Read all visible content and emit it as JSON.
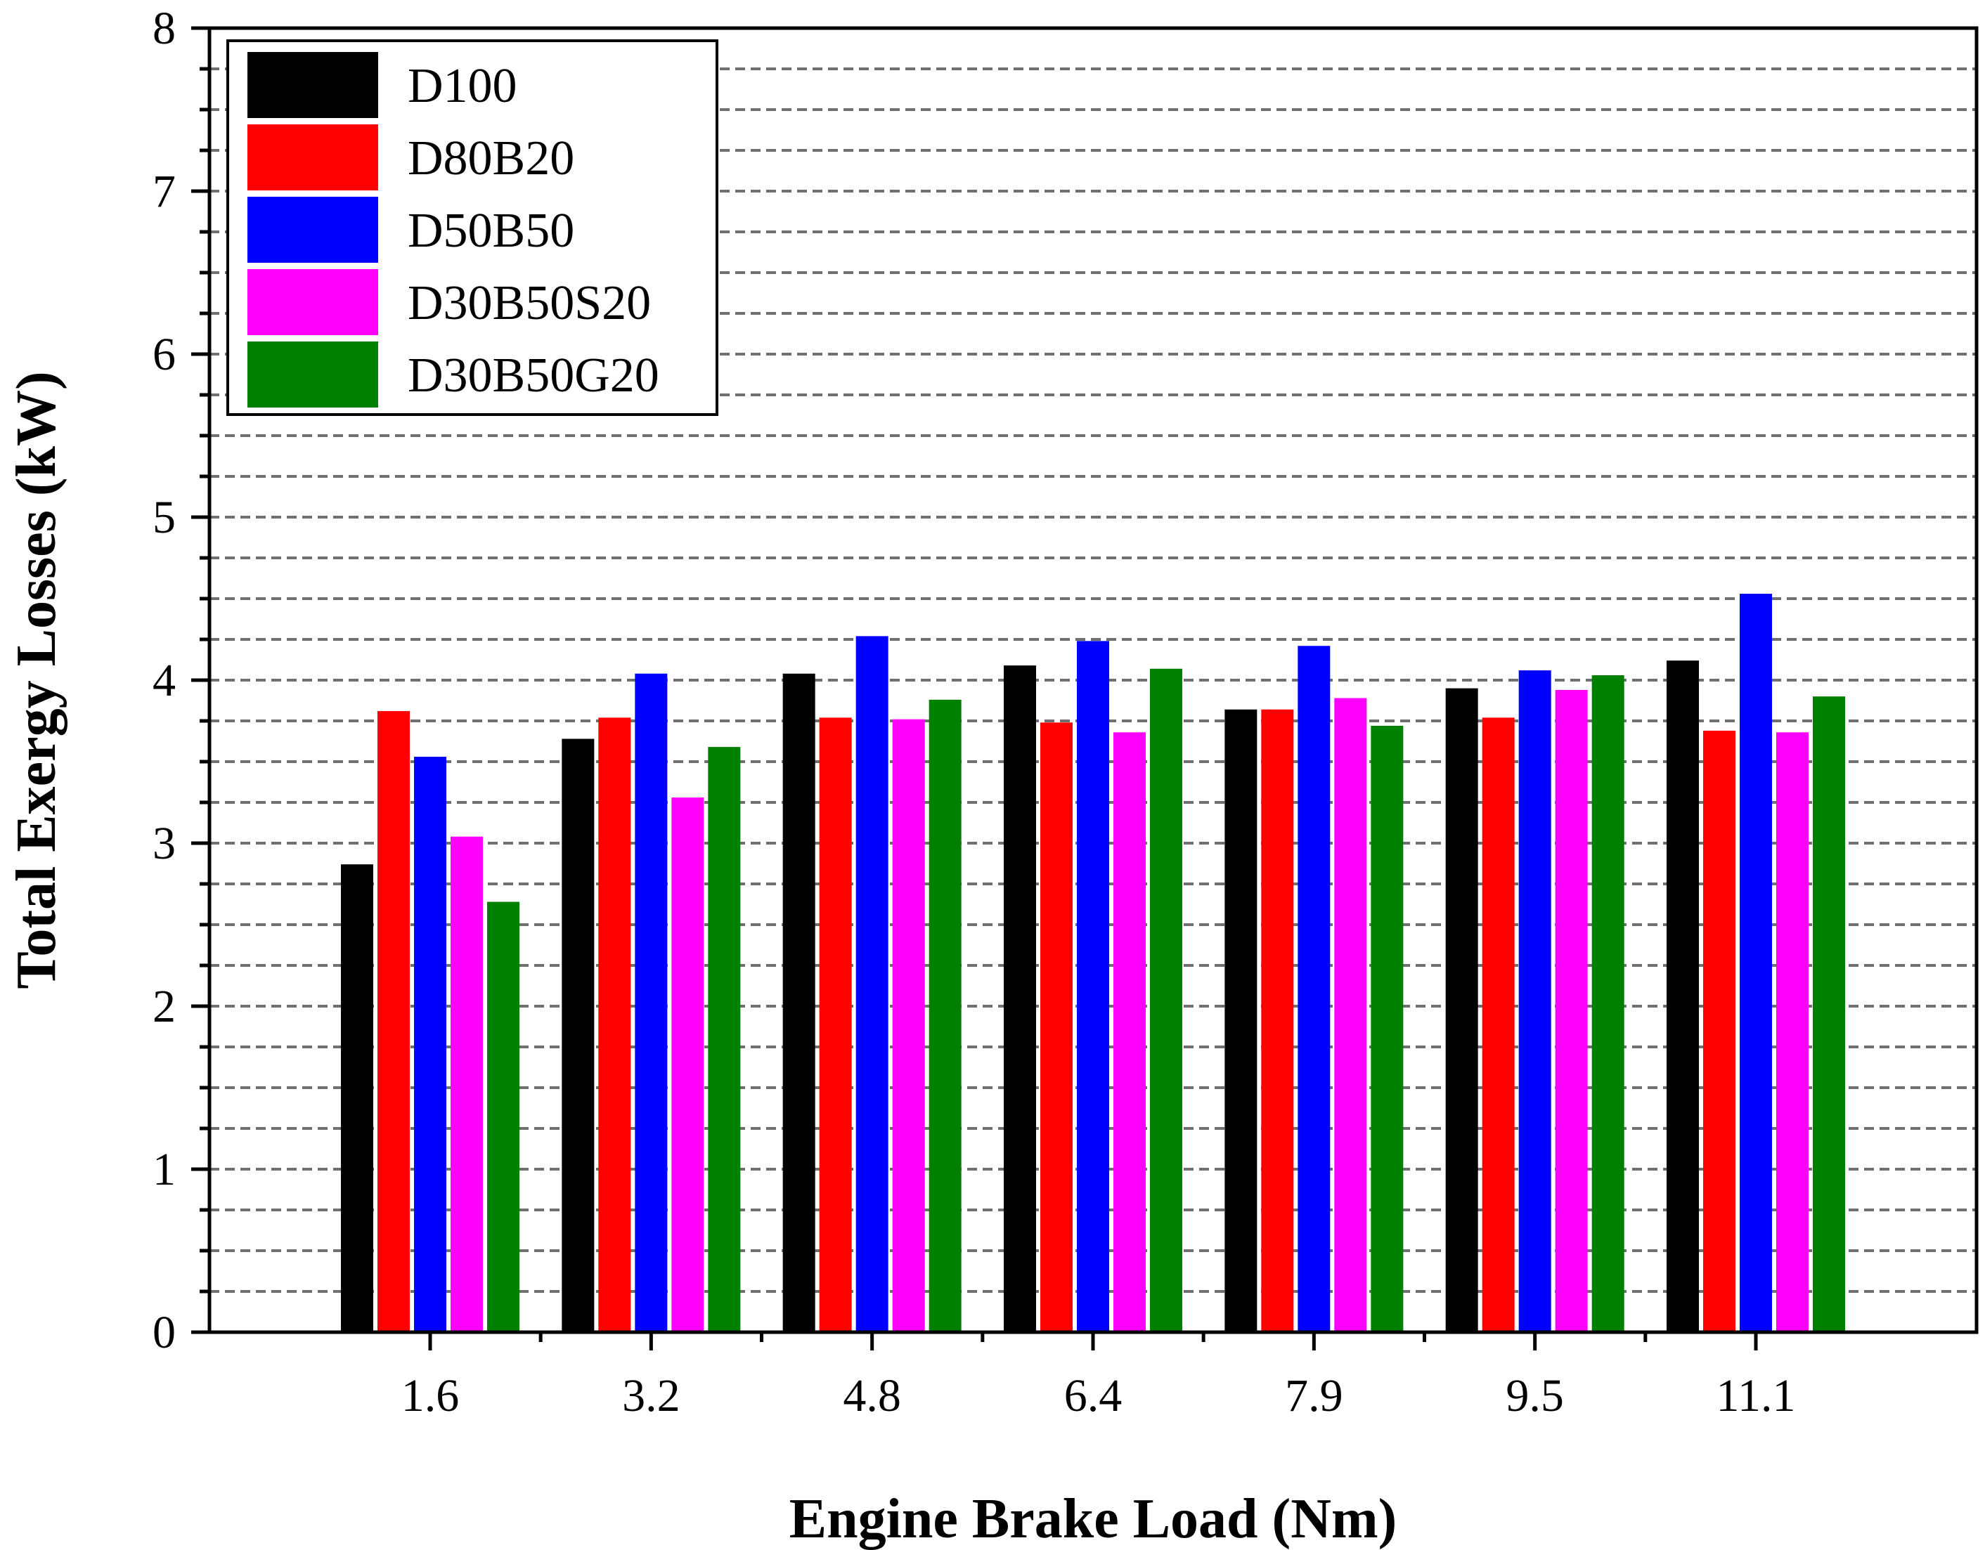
{
  "chart_data": {
    "type": "bar",
    "xlabel": "Engine Brake Load (Nm)",
    "ylabel": "Total Exergy Losses (kW)",
    "categories": [
      "1.6",
      "3.2",
      "4.8",
      "6.4",
      "7.9",
      "9.5",
      "11.1"
    ],
    "ylim": [
      0,
      8
    ],
    "yticks": [
      "0",
      "1",
      "2",
      "3",
      "4",
      "5",
      "6",
      "7",
      "8"
    ],
    "grid": "horizontal dashed at 0.25 intervals",
    "legend_position": "top-left",
    "series": [
      {
        "name": "D100",
        "color": "#000000",
        "values": [
          2.87,
          3.64,
          4.04,
          4.09,
          3.82,
          3.95,
          4.12
        ]
      },
      {
        "name": "D80B20",
        "color": "#ff0000",
        "values": [
          3.81,
          3.77,
          3.77,
          3.74,
          3.82,
          3.77,
          3.69
        ]
      },
      {
        "name": "D50B50",
        "color": "#0000ff",
        "values": [
          3.53,
          4.04,
          4.27,
          4.24,
          4.21,
          4.06,
          4.53
        ]
      },
      {
        "name": "D30B50S20",
        "color": "#ff00ff",
        "values": [
          3.04,
          3.28,
          3.76,
          3.68,
          3.89,
          3.94,
          3.68
        ]
      },
      {
        "name": "D30B50G20",
        "color": "#008000",
        "values": [
          2.64,
          3.59,
          3.88,
          4.07,
          3.72,
          4.03,
          3.9
        ]
      }
    ]
  }
}
